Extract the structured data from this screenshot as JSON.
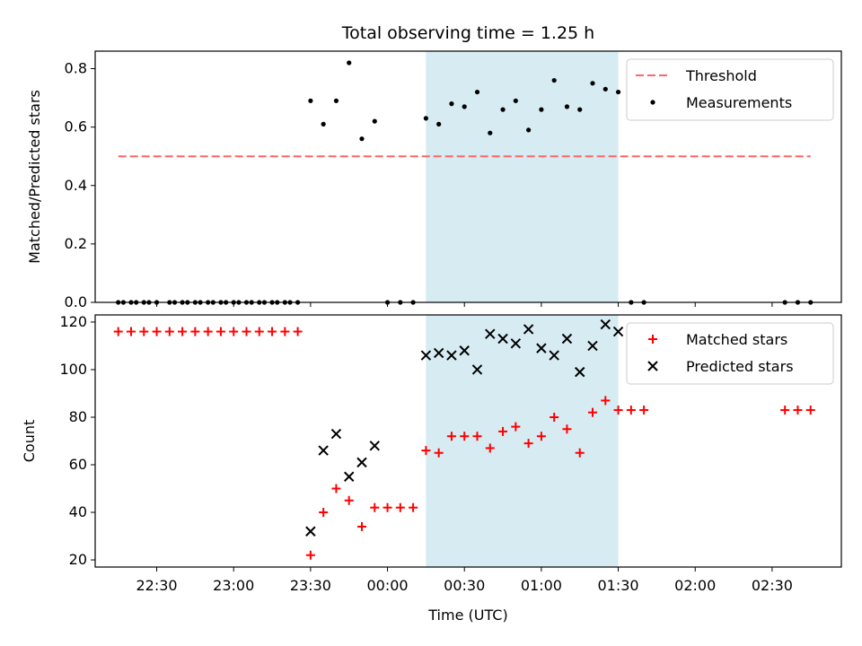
{
  "chart_data": [
    {
      "type": "scatter",
      "title": "Total observing time = 1.25 h",
      "ylabel": "Matched/Predicted stars",
      "xlabel": "",
      "x_axis": "time (UTC)",
      "xlim": [
        "22:06",
        "02:57"
      ],
      "ylim": [
        0,
        0.86
      ],
      "yticks": [
        "0.0",
        "0.2",
        "0.4",
        "0.6",
        "0.8"
      ],
      "highlight_span": {
        "from": "00:15",
        "to": "01:30",
        "color": "#add8e6"
      },
      "legend_position": "top-right",
      "series": [
        {
          "name": "Threshold",
          "kind": "dashed-line",
          "color": "#ff6666",
          "x": [
            "22:15",
            "02:45"
          ],
          "y": [
            0.5,
            0.5
          ]
        },
        {
          "name": "Measurements",
          "kind": "dot",
          "color": "#000000",
          "x": [
            "22:15",
            "22:17",
            "22:20",
            "22:22",
            "22:25",
            "22:27",
            "22:30",
            "22:35",
            "22:37",
            "22:40",
            "22:42",
            "22:45",
            "22:47",
            "22:50",
            "22:52",
            "22:55",
            "22:57",
            "23:00",
            "23:02",
            "23:05",
            "23:07",
            "23:10",
            "23:12",
            "23:15",
            "23:17",
            "23:20",
            "23:22",
            "23:25",
            "23:30",
            "23:35",
            "23:40",
            "23:45",
            "23:50",
            "23:55",
            "00:00",
            "00:05",
            "00:10",
            "00:15",
            "00:20",
            "00:25",
            "00:30",
            "00:35",
            "00:40",
            "00:45",
            "00:50",
            "00:55",
            "01:00",
            "01:05",
            "01:10",
            "01:15",
            "01:20",
            "01:25",
            "01:30",
            "01:35",
            "01:40",
            "02:35",
            "02:40",
            "02:45"
          ],
          "y": [
            0,
            0,
            0,
            0,
            0,
            0,
            0,
            0,
            0,
            0,
            0,
            0,
            0,
            0,
            0,
            0,
            0,
            0,
            0,
            0,
            0,
            0,
            0,
            0,
            0,
            0,
            0,
            0,
            0.69,
            0.61,
            0.69,
            0.82,
            0.56,
            0.62,
            0,
            0,
            0,
            0.63,
            0.61,
            0.68,
            0.67,
            0.72,
            0.58,
            0.66,
            0.69,
            0.59,
            0.66,
            0.76,
            0.67,
            0.66,
            0.75,
            0.73,
            0.72,
            0,
            0,
            0,
            0,
            0
          ]
        }
      ]
    },
    {
      "type": "scatter",
      "ylabel": "Count",
      "xlabel": "Time (UTC)",
      "xlim": [
        "22:06",
        "02:57"
      ],
      "ylim": [
        17,
        123
      ],
      "yticks": [
        "20",
        "40",
        "60",
        "80",
        "100",
        "120"
      ],
      "xticks": [
        "22:30",
        "23:00",
        "23:30",
        "00:00",
        "00:30",
        "01:00",
        "01:30",
        "02:00",
        "02:30"
      ],
      "highlight_span": {
        "from": "00:15",
        "to": "01:30",
        "color": "#add8e6"
      },
      "legend_position": "top-right",
      "series": [
        {
          "name": "Matched stars",
          "marker": "+",
          "color": "#ff0000",
          "x": [
            "22:15",
            "22:20",
            "22:25",
            "22:30",
            "22:35",
            "22:40",
            "22:45",
            "22:50",
            "22:55",
            "23:00",
            "23:05",
            "23:10",
            "23:15",
            "23:20",
            "23:25",
            "23:30",
            "23:35",
            "23:40",
            "23:45",
            "23:50",
            "23:55",
            "00:00",
            "00:05",
            "00:10",
            "00:15",
            "00:20",
            "00:25",
            "00:30",
            "00:35",
            "00:40",
            "00:45",
            "00:50",
            "00:55",
            "01:00",
            "01:05",
            "01:10",
            "01:15",
            "01:20",
            "01:25",
            "01:30",
            "01:35",
            "01:40",
            "02:35",
            "02:40",
            "02:45"
          ],
          "y": [
            116,
            116,
            116,
            116,
            116,
            116,
            116,
            116,
            116,
            116,
            116,
            116,
            116,
            116,
            116,
            22,
            40,
            50,
            45,
            34,
            42,
            42,
            42,
            42,
            66,
            65,
            72,
            72,
            72,
            67,
            74,
            76,
            69,
            72,
            80,
            75,
            65,
            82,
            87,
            83,
            83,
            83,
            83,
            83,
            83
          ]
        },
        {
          "name": "Predicted stars",
          "marker": "x",
          "color": "#000000",
          "x": [
            "23:30",
            "23:35",
            "23:40",
            "23:45",
            "23:50",
            "23:55",
            "00:15",
            "00:20",
            "00:25",
            "00:30",
            "00:35",
            "00:40",
            "00:45",
            "00:50",
            "00:55",
            "01:00",
            "01:05",
            "01:10",
            "01:15",
            "01:20",
            "01:25",
            "01:30"
          ],
          "y": [
            32,
            66,
            73,
            55,
            61,
            68,
            106,
            107,
            106,
            108,
            100,
            115,
            113,
            111,
            117,
            109,
            106,
            113,
            99,
            110,
            119,
            116
          ]
        }
      ]
    }
  ]
}
